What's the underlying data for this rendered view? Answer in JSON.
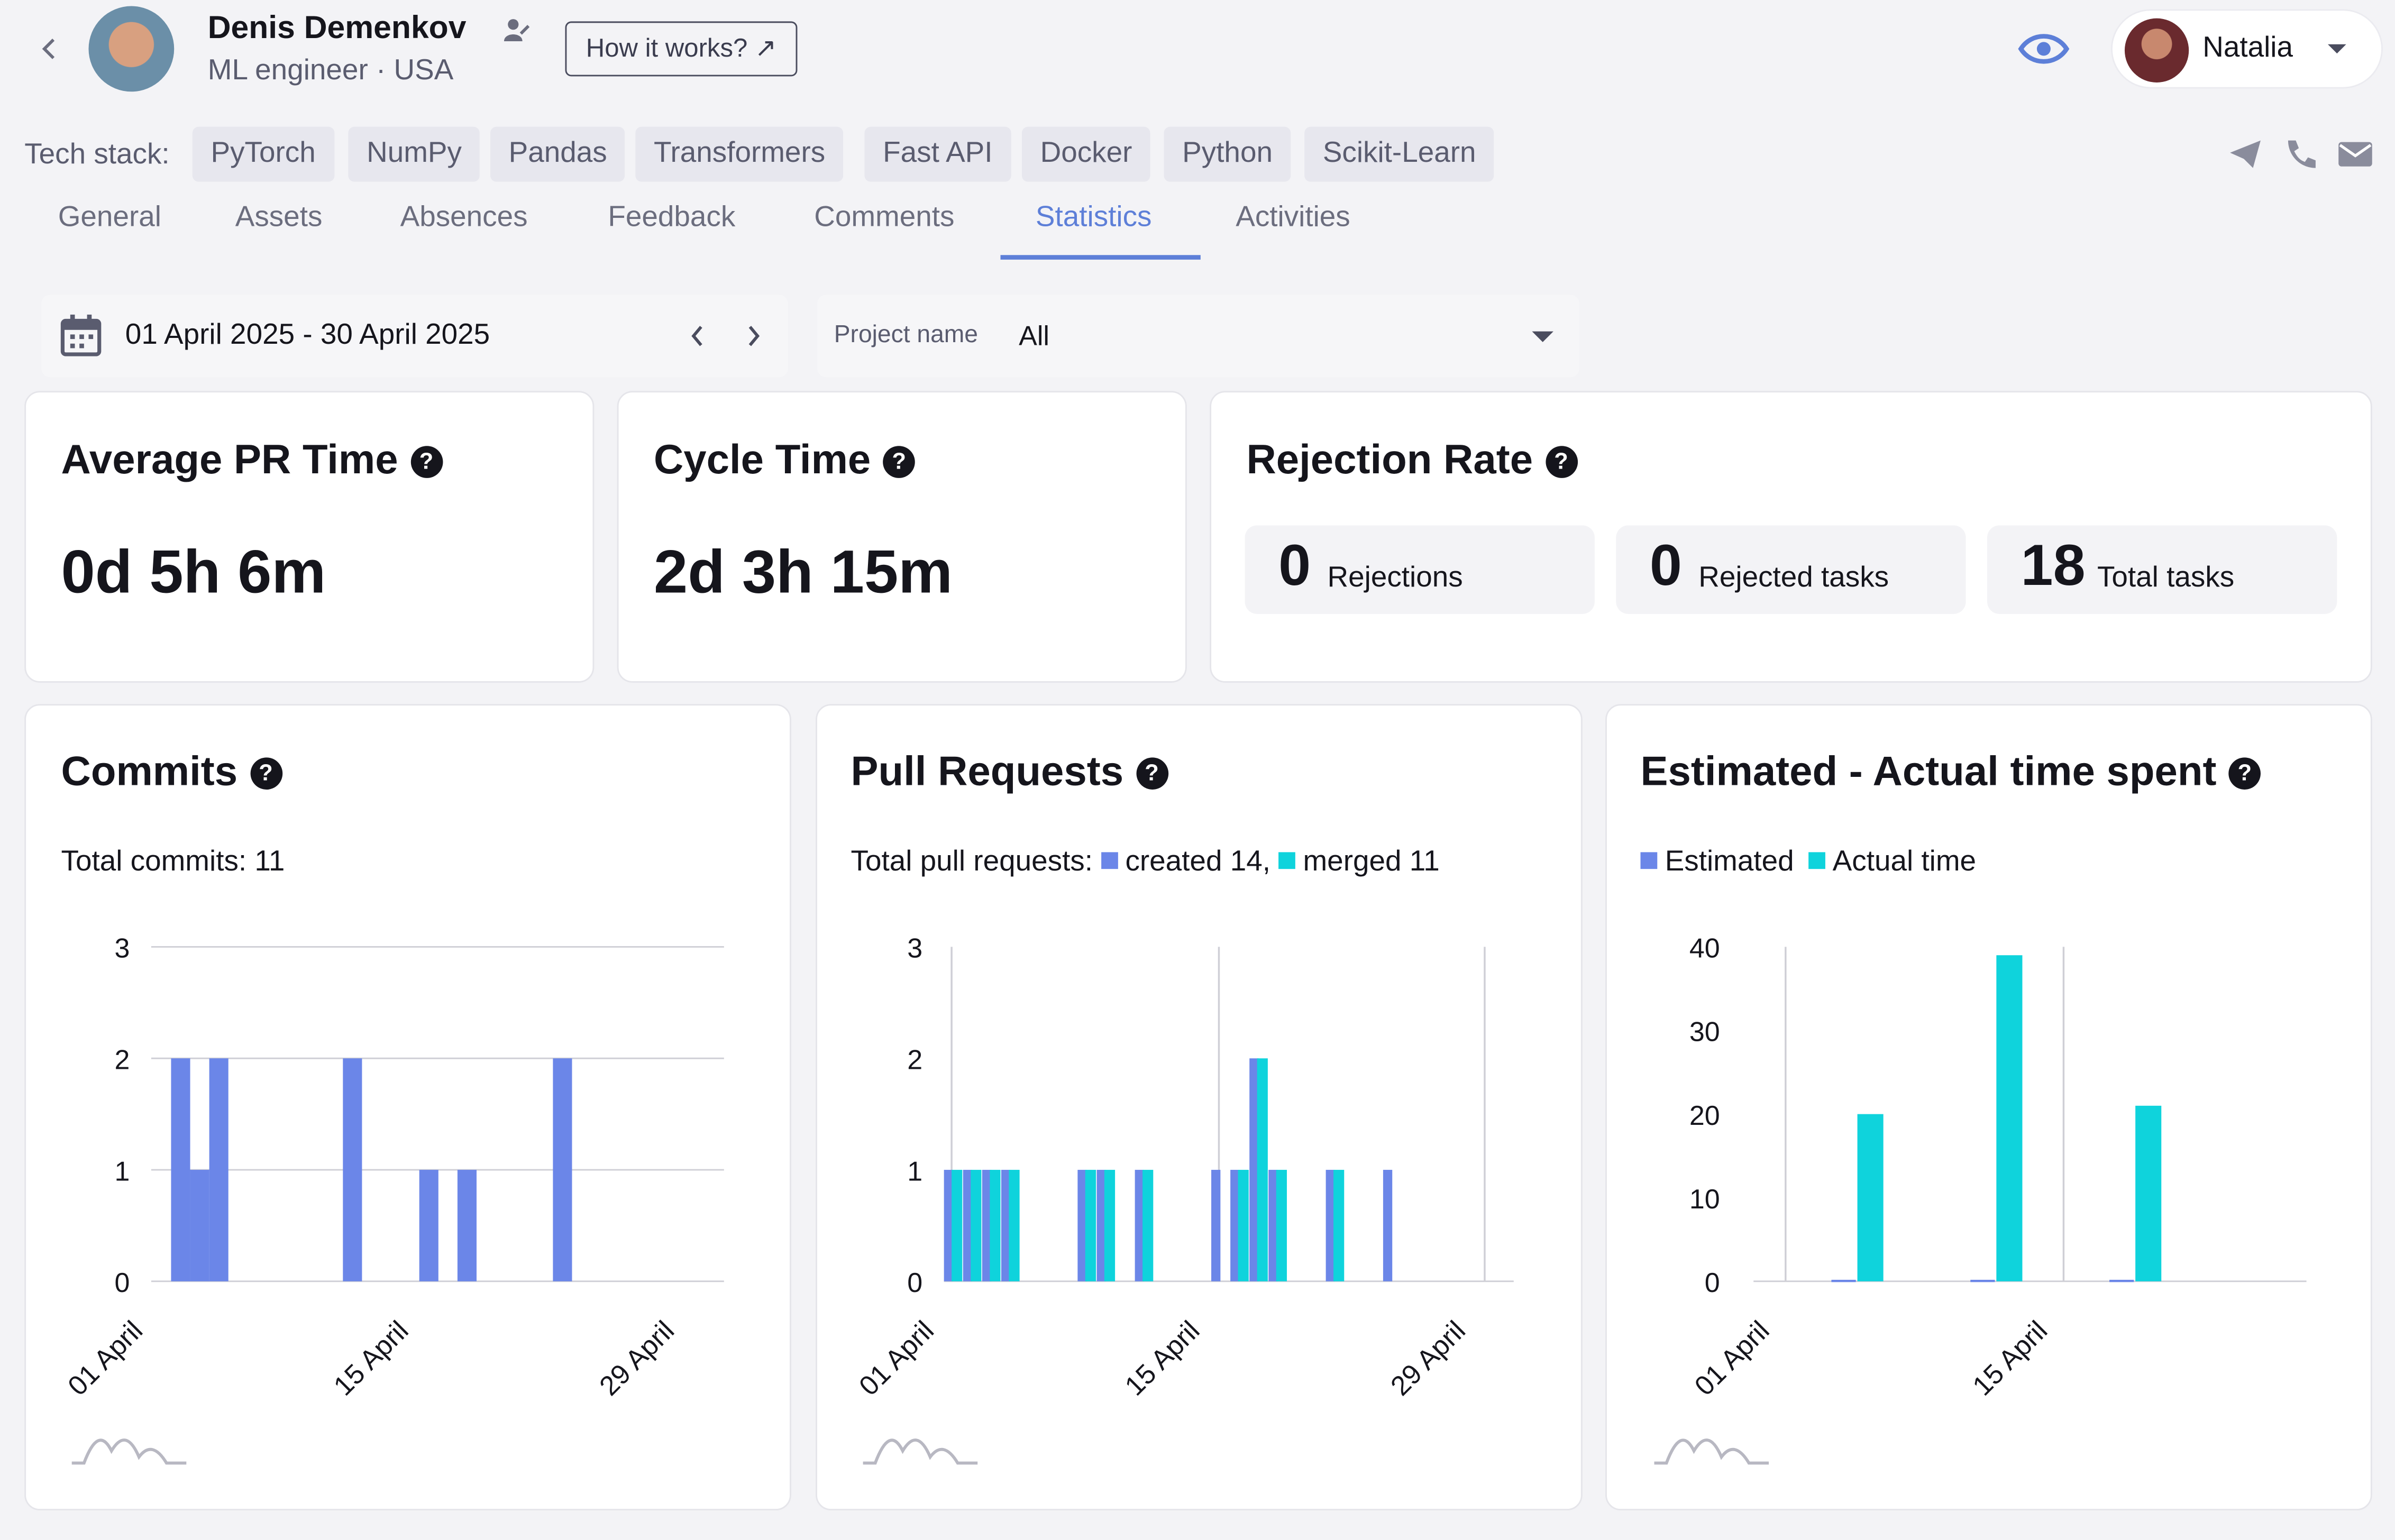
{
  "colors": {
    "estimated": "#6b86e8",
    "actual": "#0fd3dc",
    "accent": "#5d7fd8",
    "grid": "#cfcfd6"
  },
  "header": {
    "back_icon": "chevron-left-icon",
    "name": "Denis Demenkov",
    "role": "ML engineer · USA",
    "how_it_works": "How it works? ↗",
    "user_name": "Natalia"
  },
  "tech_stack": {
    "label": "Tech stack:",
    "items": [
      "PyTorch",
      "NumPy",
      "Pandas",
      "Transformers",
      "Fast API",
      "Docker",
      "Python",
      "Scikit-Learn"
    ]
  },
  "tabs": [
    "General",
    "Assets",
    "Absences",
    "Feedback",
    "Comments",
    "Statistics",
    "Activities"
  ],
  "active_tab": "Statistics",
  "filters": {
    "date_range": "01 April 2025 - 30 April 2025",
    "project_label": "Project name",
    "project_value": "All"
  },
  "metrics": {
    "avg_pr_title": "Average PR Time",
    "avg_pr_value": "0d 5h 6m",
    "cycle_title": "Cycle Time",
    "cycle_value": "2d 3h 15m",
    "rejection_title": "Rejection Rate",
    "rejections_value": "0",
    "rejections_label": "Rejections",
    "rejected_tasks_value": "0",
    "rejected_tasks_label": "Rejected tasks",
    "total_tasks_value": "18",
    "total_tasks_label": "Total tasks"
  },
  "charts": {
    "commits_title": "Commits",
    "commits_subtitle": "Total commits: 11",
    "pr_title": "Pull Requests",
    "pr_subtitle_prefix": "Total pull requests:",
    "pr_created": "created 14,",
    "pr_merged": "merged 11",
    "est_title": "Estimated - Actual time spent",
    "est_legend_estimated": "Estimated",
    "est_legend_actual": "Actual time"
  },
  "chart_data": [
    {
      "type": "bar",
      "title": "Commits",
      "ylim": [
        0,
        3
      ],
      "yticks": [
        0,
        1,
        2,
        3
      ],
      "xticks": [
        "01 April",
        "15 April",
        "29 April"
      ],
      "x": [
        "01 April",
        "02 April",
        "03 April",
        "10 April",
        "14 April",
        "16 April",
        "21 April"
      ],
      "values": [
        2,
        1,
        2,
        2,
        1,
        1,
        2
      ]
    },
    {
      "type": "bar",
      "title": "Pull Requests",
      "ylim": [
        0,
        3
      ],
      "yticks": [
        0,
        1,
        2,
        3
      ],
      "xticks": [
        "01 April",
        "15 April",
        "29 April"
      ],
      "x": [
        "01 April",
        "02 April",
        "03 April",
        "04 April",
        "08 April",
        "09 April",
        "11 April",
        "15 April",
        "16 April",
        "17 April",
        "18 April",
        "21 April",
        "24 April"
      ],
      "series": [
        {
          "name": "created",
          "values": [
            1,
            1,
            1,
            1,
            1,
            1,
            1,
            1,
            1,
            2,
            1,
            1,
            1
          ]
        },
        {
          "name": "merged",
          "values": [
            1,
            1,
            1,
            1,
            1,
            1,
            1,
            0,
            1,
            2,
            1,
            1,
            0
          ]
        }
      ]
    },
    {
      "type": "bar",
      "title": "Estimated - Actual time spent",
      "ylim": [
        0,
        40
      ],
      "yticks": [
        0,
        10,
        20,
        30,
        40
      ],
      "xticks": [
        "01 April",
        "15 April"
      ],
      "x": [
        "05 April",
        "12 April",
        "19 April"
      ],
      "series": [
        {
          "name": "Estimated",
          "values": [
            0,
            0,
            0
          ]
        },
        {
          "name": "Actual time",
          "values": [
            20,
            39,
            21
          ]
        }
      ]
    }
  ]
}
